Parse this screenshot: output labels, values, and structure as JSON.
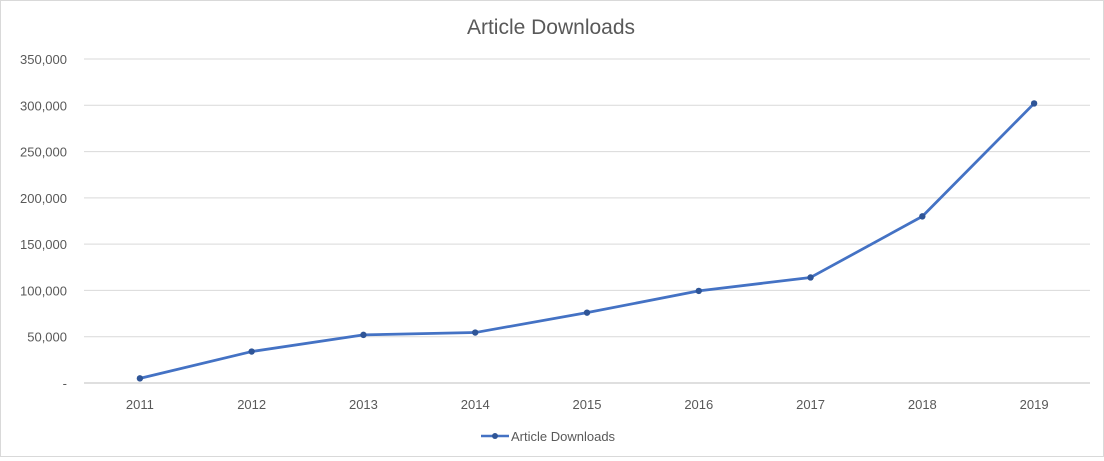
{
  "chart_data": {
    "type": "line",
    "title": "Article Downloads",
    "xlabel": "",
    "ylabel": "",
    "categories": [
      "2011",
      "2012",
      "2013",
      "2014",
      "2015",
      "2016",
      "2017",
      "2018",
      "2019"
    ],
    "series": [
      {
        "name": "Article Downloads",
        "values": [
          5000,
          34000,
          52000,
          54500,
          76000,
          99500,
          114000,
          180000,
          302000
        ]
      }
    ],
    "ylim": [
      0,
      350000
    ],
    "y_ticks": [
      0,
      50000,
      100000,
      150000,
      200000,
      250000,
      300000,
      350000
    ],
    "y_tick_labels": [
      "-",
      "50,000",
      "100,000",
      "150,000",
      "200,000",
      "250,000",
      "300,000",
      "350,000"
    ],
    "grid": "horizontal",
    "legend_position": "bottom",
    "line_color": "#4472c4",
    "marker_color": "#2f5597"
  }
}
